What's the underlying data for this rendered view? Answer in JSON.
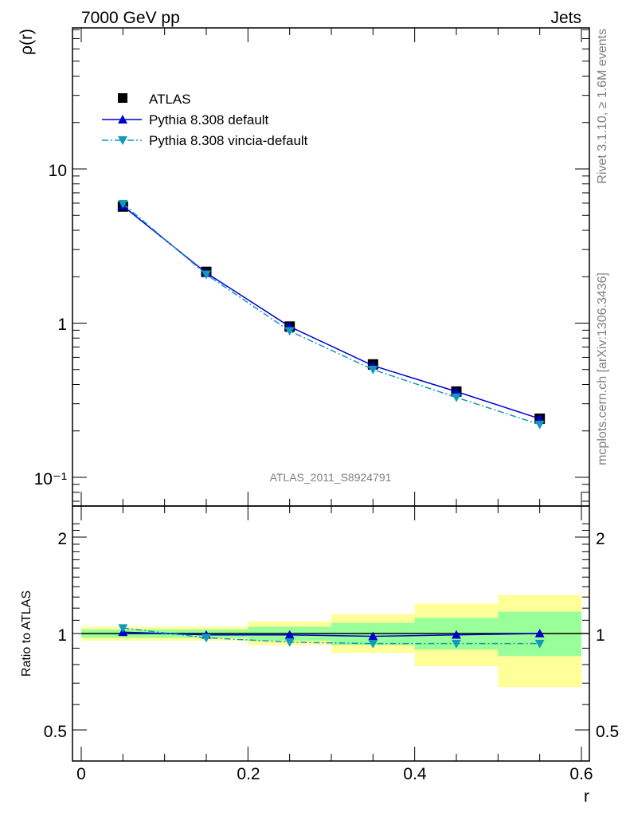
{
  "header": {
    "left": "7000 GeV pp",
    "right": "Jets"
  },
  "side_labels": {
    "rivet": "Rivet 3.1.10, ≥ 1.6M events",
    "mcplots": "mcplots.cern.ch [arXiv:1306.3436]"
  },
  "watermark": "ATLAS_2011_S8924791",
  "chart_data": [
    {
      "type": "line",
      "panel": "main",
      "ylabel": "ρ(r)",
      "yscale": "log",
      "ylim": [
        0.07,
        90
      ],
      "xlim": [
        -0.01,
        0.6
      ],
      "x": [
        0.05,
        0.15,
        0.25,
        0.35,
        0.45,
        0.55
      ],
      "y_tick_labels": [
        "10",
        "1",
        "10⁻¹"
      ],
      "legend": {
        "position": "top-left"
      },
      "series": [
        {
          "name": "ATLAS",
          "marker": "square",
          "color": "#000000",
          "values": [
            5.7,
            2.15,
            0.95,
            0.54,
            0.36,
            0.24
          ]
        },
        {
          "name": "Pythia 8.308 default",
          "marker": "triangle-up",
          "line": "solid",
          "color": "#0000cc",
          "values": [
            5.75,
            2.12,
            0.95,
            0.53,
            0.36,
            0.24
          ]
        },
        {
          "name": "Pythia 8.308 vincia-default",
          "marker": "triangle-down",
          "line": "dash-dot",
          "color": "#1199bb",
          "values": [
            5.95,
            2.07,
            0.89,
            0.5,
            0.33,
            0.22
          ]
        }
      ]
    },
    {
      "type": "line",
      "panel": "ratio",
      "ylabel": "Ratio to ATLAS",
      "xlabel": "r",
      "ylim": [
        0.4,
        2.3
      ],
      "xlim": [
        -0.01,
        0.6
      ],
      "x_tick_labels": [
        "0",
        "0.2",
        "0.4",
        "0.6"
      ],
      "y_tick_labels": [
        "2",
        "1",
        "0.5"
      ],
      "bands": {
        "edges": [
          0.0,
          0.1,
          0.2,
          0.3,
          0.4,
          0.5,
          0.6
        ],
        "yellow": {
          "color": "#ffff99",
          "lo": [
            0.95,
            0.95,
            0.92,
            0.87,
            0.79,
            0.68
          ],
          "hi": [
            1.05,
            1.05,
            1.09,
            1.15,
            1.24,
            1.32
          ]
        },
        "green": {
          "color": "#99ff99",
          "lo": [
            0.97,
            0.97,
            0.95,
            0.92,
            0.89,
            0.85
          ],
          "hi": [
            1.03,
            1.03,
            1.05,
            1.08,
            1.12,
            1.17
          ]
        }
      },
      "reference_line": 1.0,
      "series": [
        {
          "name": "Pythia 8.308 default",
          "marker": "triangle-up",
          "line": "solid",
          "color": "#0000cc",
          "x": [
            0.05,
            0.15,
            0.25,
            0.35,
            0.45,
            0.55
          ],
          "values": [
            1.01,
            0.99,
            0.99,
            0.98,
            0.99,
            1.0
          ]
        },
        {
          "name": "Pythia 8.308 vincia-default",
          "marker": "triangle-down",
          "line": "dash-dot",
          "color": "#1199bb",
          "x": [
            0.05,
            0.15,
            0.25,
            0.35,
            0.45,
            0.55
          ],
          "values": [
            1.04,
            0.97,
            0.94,
            0.93,
            0.93,
            0.93
          ]
        }
      ]
    }
  ]
}
